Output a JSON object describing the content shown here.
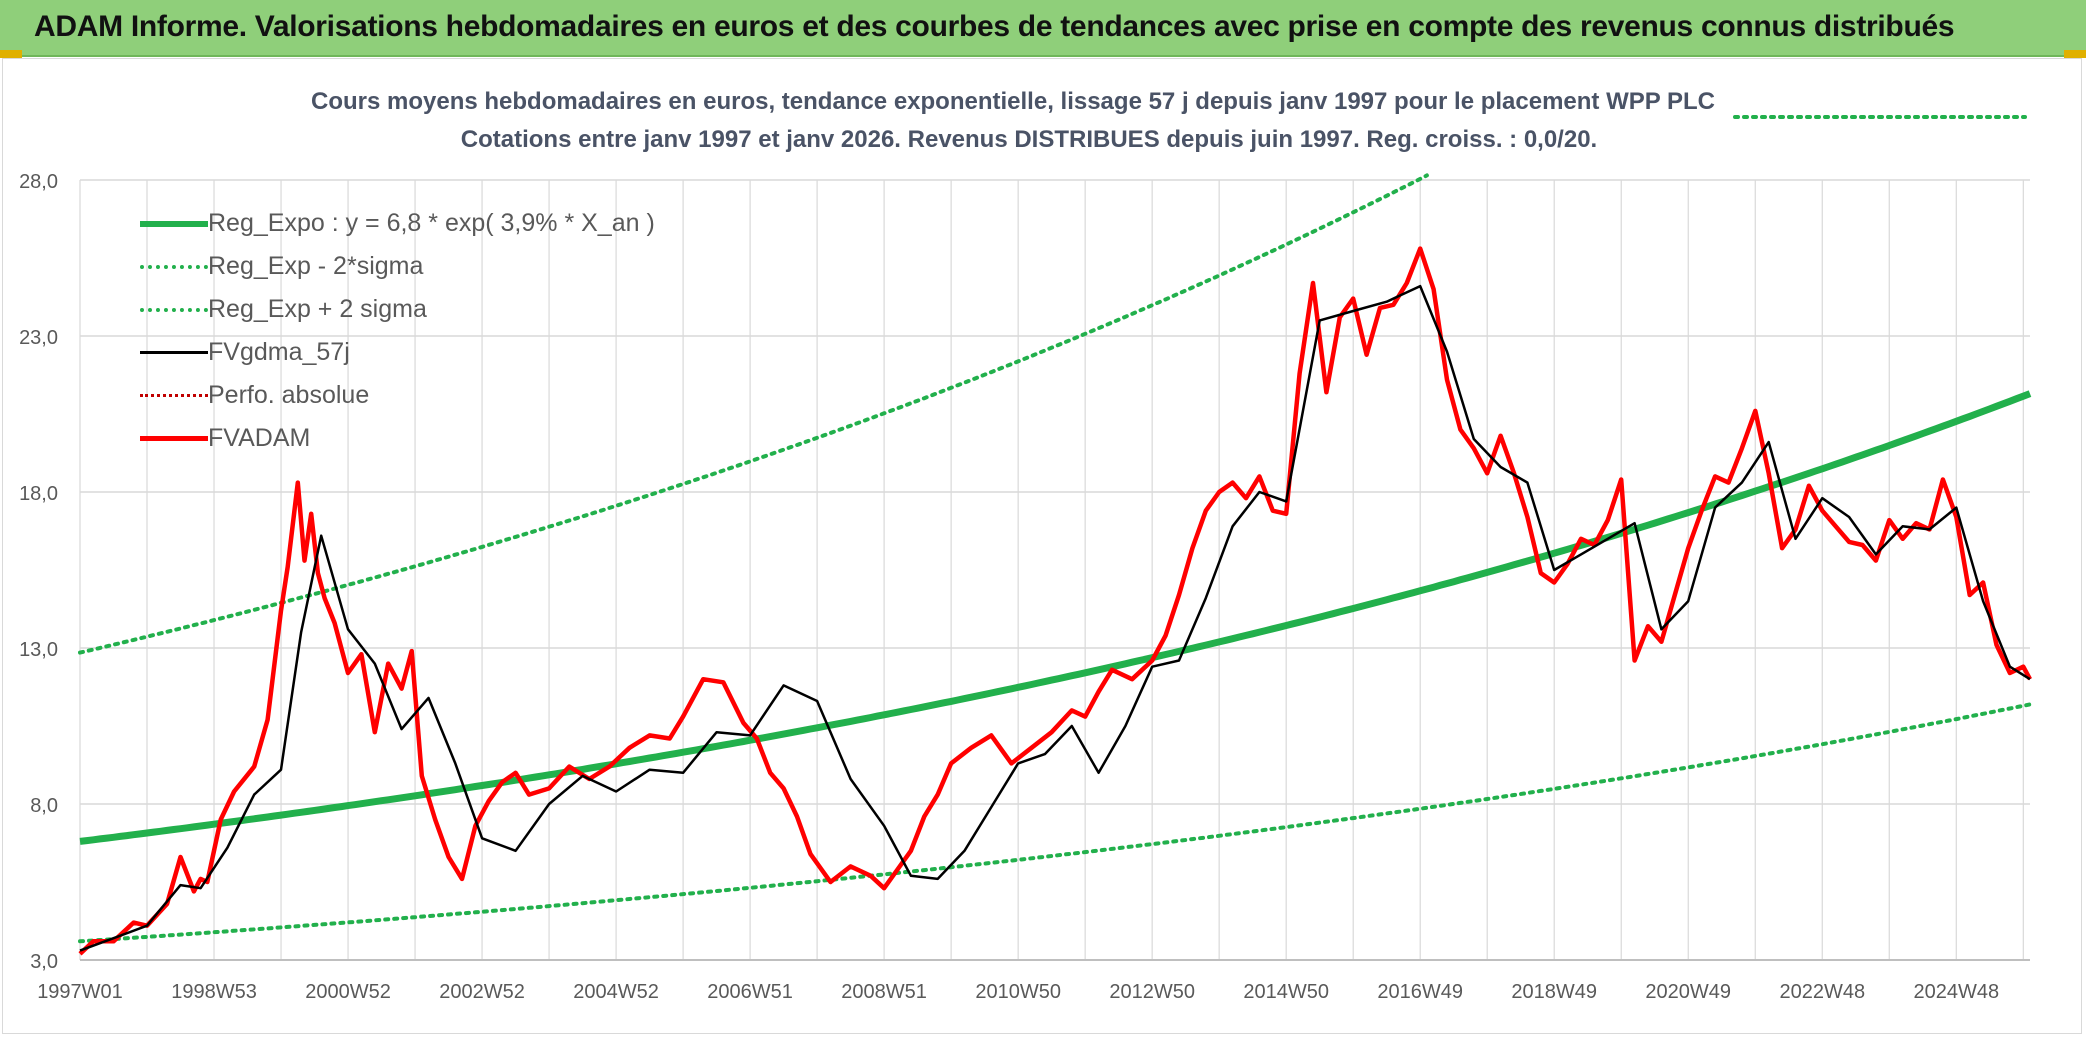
{
  "header": {
    "title": "ADAM Informe. Valorisations hebdomadaires en euros et des courbes de tendances avec prise en compte des revenus connus distribués"
  },
  "colors": {
    "banner": "#8fcf7a",
    "reg_expo": "#22b04c",
    "fvgdma": "#000000",
    "fvadam": "#ff0000",
    "perfo": "#c00000",
    "grid": "#d9d9d9"
  },
  "chart_data": {
    "type": "line",
    "subtitle_1": "Cours moyens hebdomadaires en euros, tendance exponentielle, lissage 57 j depuis janv 1997 pour le placement WPP PLC",
    "subtitle_2": "Cotations entre janv 1997 et janv 2026. Revenus DISTRIBUES depuis juin 1997. Reg. croiss. : 0,0/20.",
    "xlabel": "",
    "ylabel": "",
    "x_range": [
      1997.0,
      2026.1
    ],
    "ylim": [
      3.0,
      28.0
    ],
    "y_ticks": [
      "3,0",
      "8,0",
      "13,0",
      "18,0",
      "23,0",
      "28,0"
    ],
    "y_tick_values": [
      3,
      8,
      13,
      18,
      23,
      28
    ],
    "x_ticks": [
      {
        "label": "1997W01",
        "x": 1997.0
      },
      {
        "label": "1998W53",
        "x": 1999.0
      },
      {
        "label": "2000W52",
        "x": 2001.0
      },
      {
        "label": "2002W52",
        "x": 2003.0
      },
      {
        "label": "2004W52",
        "x": 2005.0
      },
      {
        "label": "2006W51",
        "x": 2007.0
      },
      {
        "label": "2008W51",
        "x": 2009.0
      },
      {
        "label": "2010W50",
        "x": 2011.0
      },
      {
        "label": "2012W50",
        "x": 2013.0
      },
      {
        "label": "2014W50",
        "x": 2015.0
      },
      {
        "label": "2016W49",
        "x": 2017.0
      },
      {
        "label": "2018W49",
        "x": 2019.0
      },
      {
        "label": "2020W49",
        "x": 2021.0
      },
      {
        "label": "2022W48",
        "x": 2023.0
      },
      {
        "label": "2024W48",
        "x": 2025.0
      }
    ],
    "grid": true,
    "legend_position": "top-left",
    "regression": {
      "a": 6.8,
      "rate": 0.039,
      "sigma_factor": 1.89
    },
    "series": [
      {
        "name": "Reg_Expo : y = 6,8 * exp( 3,9% *  X_an )",
        "style": "solid-thick",
        "color": "#22b04c"
      },
      {
        "name": "Reg_Exp - 2*sigma",
        "style": "dotted",
        "color": "#22b04c"
      },
      {
        "name": "Reg_Exp + 2 sigma",
        "style": "dotted",
        "color": "#22b04c"
      },
      {
        "name": "FVgdma_57j",
        "style": "solid-thin",
        "color": "#000000",
        "x": [
          1997.0,
          1997.5,
          1998.0,
          1998.5,
          1998.8,
          1999.2,
          1999.6,
          2000.0,
          2000.3,
          2000.6,
          2001.0,
          2001.4,
          2001.8,
          2002.2,
          2002.6,
          2003.0,
          2003.5,
          2004.0,
          2004.5,
          2005.0,
          2005.5,
          2006.0,
          2006.5,
          2007.0,
          2007.5,
          2008.0,
          2008.5,
          2009.0,
          2009.4,
          2009.8,
          2010.2,
          2010.6,
          2011.0,
          2011.4,
          2011.8,
          2012.2,
          2012.6,
          2013.0,
          2013.4,
          2013.8,
          2014.2,
          2014.6,
          2015.0,
          2015.5,
          2016.0,
          2016.5,
          2017.0,
          2017.4,
          2017.8,
          2018.2,
          2018.6,
          2019.0,
          2019.4,
          2019.8,
          2020.2,
          2020.6,
          2021.0,
          2021.4,
          2021.8,
          2022.2,
          2022.6,
          2023.0,
          2023.4,
          2023.8,
          2024.2,
          2024.6,
          2025.0,
          2025.4,
          2025.8,
          2026.1
        ],
        "values": [
          3.3,
          3.7,
          4.1,
          5.4,
          5.3,
          6.6,
          8.3,
          9.1,
          13.5,
          16.6,
          13.6,
          12.5,
          10.4,
          11.4,
          9.3,
          6.9,
          6.5,
          8.0,
          8.9,
          8.4,
          9.1,
          9.0,
          10.3,
          10.2,
          11.8,
          11.3,
          8.8,
          7.3,
          5.7,
          5.6,
          6.5,
          7.9,
          9.3,
          9.6,
          10.5,
          9.0,
          10.5,
          12.4,
          12.6,
          14.6,
          16.9,
          18.0,
          17.7,
          23.5,
          23.8,
          24.1,
          24.6,
          22.5,
          19.7,
          18.8,
          18.3,
          15.5,
          16.0,
          16.5,
          17.0,
          13.6,
          14.5,
          17.5,
          18.3,
          19.6,
          16.5,
          17.8,
          17.2,
          16.0,
          16.9,
          16.8,
          17.5,
          14.5,
          12.4,
          12.0
        ]
      },
      {
        "name": "Perfo. absolue",
        "style": "dotted",
        "color": "#c00000"
      },
      {
        "name": "FVADAM",
        "style": "solid-thick",
        "color": "#ff0000",
        "x": [
          1997.0,
          1997.2,
          1997.5,
          1997.8,
          1998.0,
          1998.3,
          1998.5,
          1998.7,
          1998.8,
          1998.9,
          1999.1,
          1999.3,
          1999.6,
          1999.8,
          2000.0,
          2000.1,
          2000.25,
          2000.35,
          2000.45,
          2000.55,
          2000.65,
          2000.8,
          2001.0,
          2001.2,
          2001.4,
          2001.6,
          2001.8,
          2001.95,
          2002.1,
          2002.3,
          2002.5,
          2002.7,
          2002.9,
          2003.1,
          2003.3,
          2003.5,
          2003.7,
          2004.0,
          2004.3,
          2004.6,
          2004.9,
          2005.2,
          2005.5,
          2005.8,
          2006.0,
          2006.3,
          2006.6,
          2006.9,
          2007.1,
          2007.3,
          2007.5,
          2007.7,
          2007.9,
          2008.2,
          2008.5,
          2008.8,
          2009.0,
          2009.2,
          2009.4,
          2009.6,
          2009.8,
          2010.0,
          2010.3,
          2010.6,
          2010.9,
          2011.2,
          2011.5,
          2011.8,
          2012.0,
          2012.2,
          2012.4,
          2012.7,
          2013.0,
          2013.2,
          2013.4,
          2013.6,
          2013.8,
          2014.0,
          2014.2,
          2014.4,
          2014.6,
          2014.8,
          2015.0,
          2015.2,
          2015.4,
          2015.6,
          2015.8,
          2016.0,
          2016.2,
          2016.4,
          2016.6,
          2016.8,
          2017.0,
          2017.2,
          2017.4,
          2017.6,
          2017.8,
          2018.0,
          2018.2,
          2018.4,
          2018.6,
          2018.8,
          2019.0,
          2019.2,
          2019.4,
          2019.6,
          2019.8,
          2020.0,
          2020.2,
          2020.4,
          2020.6,
          2020.8,
          2021.0,
          2021.2,
          2021.4,
          2021.6,
          2021.8,
          2022.0,
          2022.2,
          2022.4,
          2022.6,
          2022.8,
          2023.0,
          2023.2,
          2023.4,
          2023.6,
          2023.8,
          2024.0,
          2024.2,
          2024.4,
          2024.6,
          2024.8,
          2025.0,
          2025.2,
          2025.4,
          2025.6,
          2025.8,
          2026.0,
          2026.1
        ],
        "values": [
          3.2,
          3.6,
          3.6,
          4.2,
          4.1,
          4.8,
          6.3,
          5.2,
          5.6,
          5.5,
          7.5,
          8.4,
          9.2,
          10.7,
          14.2,
          15.6,
          18.3,
          15.8,
          17.3,
          15.4,
          14.6,
          13.8,
          12.2,
          12.8,
          10.3,
          12.5,
          11.7,
          12.9,
          8.9,
          7.5,
          6.3,
          5.6,
          7.3,
          8.1,
          8.7,
          9.0,
          8.3,
          8.5,
          9.2,
          8.8,
          9.2,
          9.8,
          10.2,
          10.1,
          10.8,
          12.0,
          11.9,
          10.6,
          10.1,
          9.0,
          8.5,
          7.6,
          6.4,
          5.5,
          6.0,
          5.7,
          5.3,
          5.9,
          6.5,
          7.6,
          8.3,
          9.3,
          9.8,
          10.2,
          9.3,
          9.8,
          10.3,
          11.0,
          10.8,
          11.6,
          12.3,
          12.0,
          12.6,
          13.4,
          14.7,
          16.2,
          17.4,
          18.0,
          18.3,
          17.8,
          18.5,
          17.4,
          17.3,
          21.8,
          24.7,
          21.2,
          23.6,
          24.2,
          22.4,
          23.9,
          24.0,
          24.7,
          25.8,
          24.5,
          21.6,
          20.0,
          19.4,
          18.6,
          19.8,
          18.6,
          17.2,
          15.4,
          15.1,
          15.7,
          16.5,
          16.3,
          17.1,
          18.4,
          12.6,
          13.7,
          13.2,
          14.7,
          16.2,
          17.4,
          18.5,
          18.3,
          19.4,
          20.6,
          18.6,
          16.2,
          16.8,
          18.2,
          17.4,
          16.9,
          16.4,
          16.3,
          15.8,
          17.1,
          16.5,
          17.0,
          16.8,
          18.4,
          17.2,
          14.7,
          15.1,
          13.1,
          12.2,
          12.4,
          12.0
        ]
      }
    ]
  }
}
